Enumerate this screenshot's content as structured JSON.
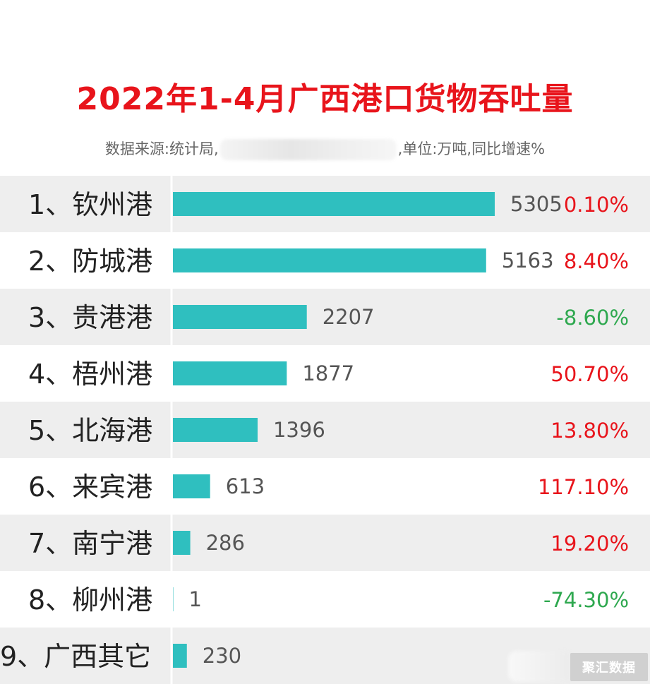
{
  "title": "2022年1-4月广西港口货物吞吐量",
  "subtitle_left": "数据来源:统计局,",
  "subtitle_right": ",单位:万吨,同比增速%",
  "watermark": "聚汇数据",
  "colors": {
    "bar": "#2fbfbf",
    "positive": "#e8141b",
    "negative": "#2ea84f",
    "row_band": "#eeeeee",
    "label": "#222222",
    "value": "#555555"
  },
  "chart_data": {
    "type": "bar",
    "orientation": "horizontal",
    "title": "2022年1-4月广西港口货物吞吐量",
    "unit": "万吨",
    "categories": [
      "1、钦州港",
      "2、防城港",
      "3、贵港港",
      "4、梧州港",
      "5、北海港",
      "6、来宾港",
      "7、南宁港",
      "8、柳州港",
      "9、广西其它"
    ],
    "values": [
      5305,
      5163,
      2207,
      1877,
      1396,
      613,
      286,
      1,
      230
    ],
    "value_labels": [
      "5305",
      "5163",
      "2207",
      "1877",
      "1396",
      "613",
      "286",
      "1",
      "230"
    ],
    "growth_labels": [
      "0.10%",
      "8.40%",
      "-8.60%",
      "50.70%",
      "13.80%",
      "117.10%",
      "19.20%",
      "-74.30%",
      ""
    ],
    "growth": [
      0.1,
      8.4,
      -8.6,
      50.7,
      13.8,
      117.1,
      19.2,
      -74.3,
      null
    ],
    "xlim": [
      0,
      5305
    ],
    "grid": false,
    "legend": "none"
  }
}
